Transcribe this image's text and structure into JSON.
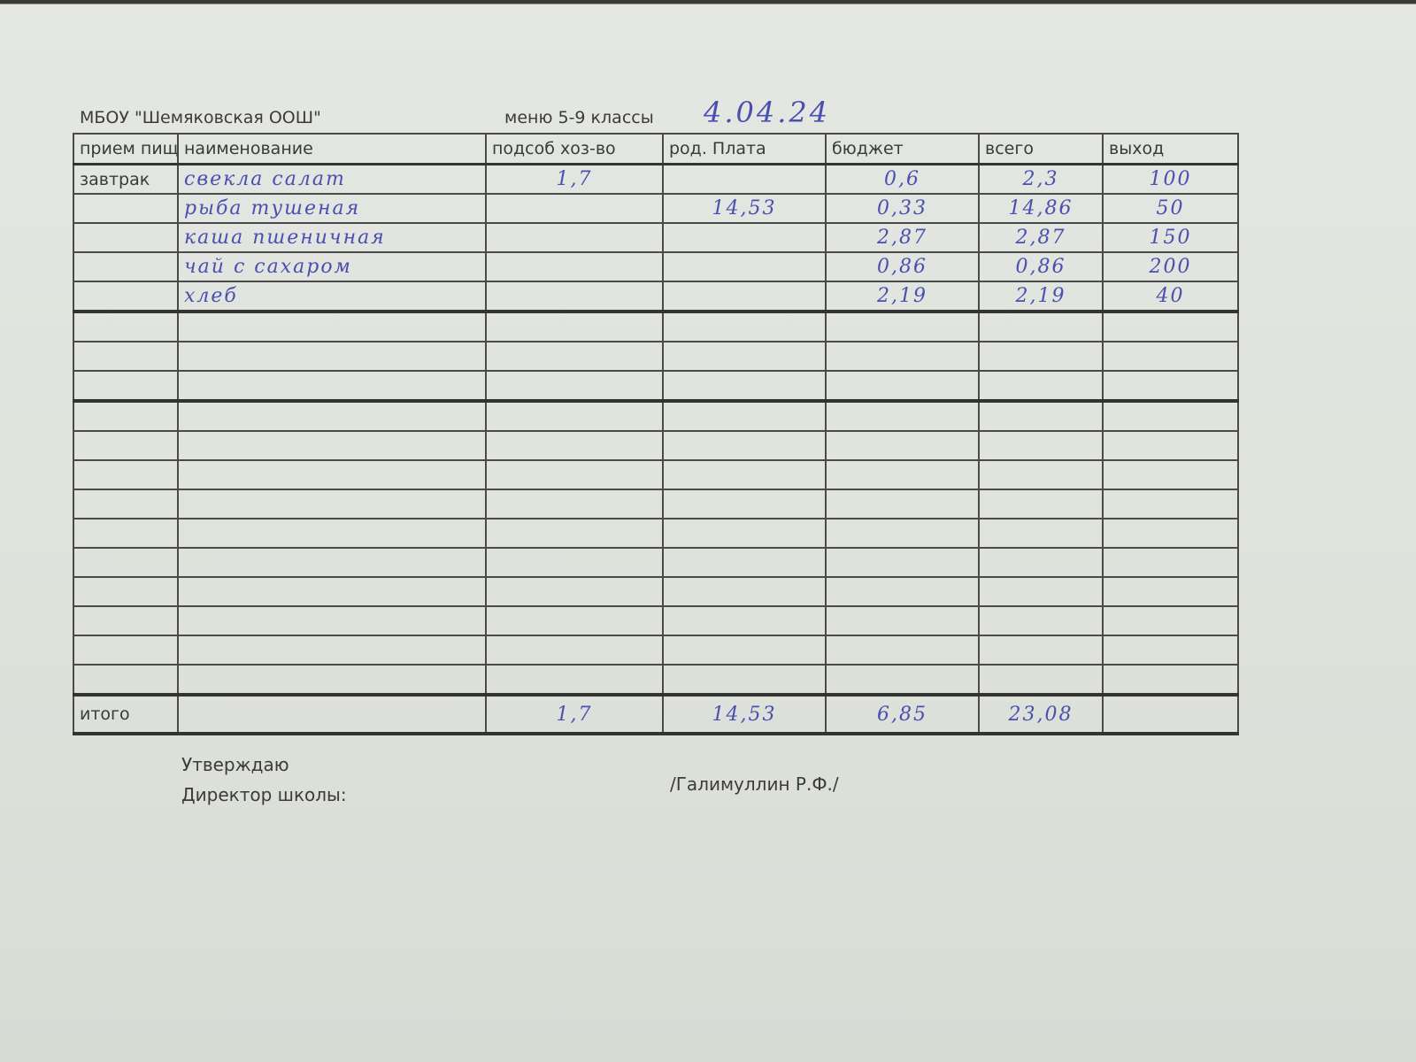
{
  "header": {
    "school": "МБОУ \"Шемяковская ООШ\"",
    "menu": "меню 5-9 классы",
    "date": "4.04.24"
  },
  "columns": [
    "прием пищ",
    "наименование",
    "подсоб хоз-во",
    "род. Плата",
    "бюджет",
    "всего",
    "выход"
  ],
  "meal": "завтрак",
  "rows": [
    {
      "name": "свекла салат",
      "podsob": "1,7",
      "rod": "",
      "budget": "0,6",
      "total": "2,3",
      "output": "100"
    },
    {
      "name": "рыба тушеная",
      "podsob": "",
      "rod": "14,53",
      "budget": "0,33",
      "total": "14,86",
      "output": "50"
    },
    {
      "name": "каша пшеничная",
      "podsob": "",
      "rod": "",
      "budget": "2,87",
      "total": "2,87",
      "output": "150"
    },
    {
      "name": "чай с сахаром",
      "podsob": "",
      "rod": "",
      "budget": "0,86",
      "total": "0,86",
      "output": "200"
    },
    {
      "name": "хлеб",
      "podsob": "",
      "rod": "",
      "budget": "2,19",
      "total": "2,19",
      "output": "40"
    }
  ],
  "totals": {
    "label": "итого",
    "podsob": "1,7",
    "rod": "14,53",
    "budget": "6,85",
    "total": "23,08"
  },
  "footer": {
    "approve": "Утверждаю",
    "director": "Директор школы:",
    "signature": "/Галимуллин Р.Ф./"
  }
}
